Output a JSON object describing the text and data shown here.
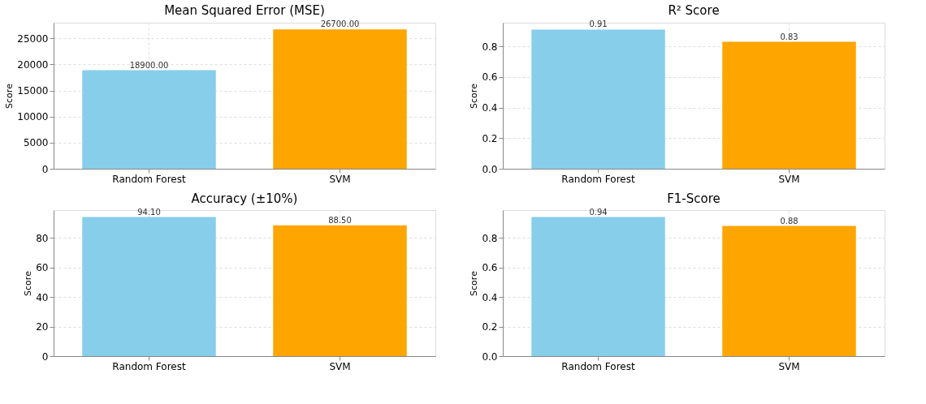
{
  "chart_data": [
    {
      "type": "bar",
      "title": "Mean Squared Error (MSE)",
      "ylabel": "Score",
      "categories": [
        "Random Forest",
        "SVM"
      ],
      "values": [
        18900,
        26700
      ],
      "colors": [
        "#87ceeb",
        "#ffa500"
      ],
      "value_labels": [
        "18900.00",
        "26700.00"
      ],
      "ylim": [
        0,
        28000
      ],
      "yticks": [
        0,
        5000,
        10000,
        15000,
        20000,
        25000
      ],
      "grid": true
    },
    {
      "type": "bar",
      "title": "R² Score",
      "ylabel": "Score",
      "categories": [
        "Random Forest",
        "SVM"
      ],
      "values": [
        0.91,
        0.83
      ],
      "colors": [
        "#87ceeb",
        "#ffa500"
      ],
      "data_labels": true,
      "ylim": [
        0,
        0.955
      ],
      "yticks": [
        {
          "value": 0,
          "label": "0.0"
        },
        0.2,
        0.4,
        0.6,
        0.8
      ],
      "grid": true
    },
    {
      "type": "bar",
      "title": "Accuracy (±10%)",
      "ylabel": "Score",
      "categories": [
        "Random Forest",
        "SVM"
      ],
      "values": [
        94.1,
        88.5
      ],
      "colors": [
        "#87ceeb",
        "#ffa500"
      ],
      "value_labels": [
        "94.10",
        "88.50"
      ],
      "ylim": [
        0,
        98.8
      ],
      "yticks": [
        0,
        20,
        40,
        60,
        80
      ],
      "grid": true
    },
    {
      "type": "bar",
      "title": "F1-Score",
      "ylabel": "Score",
      "categories": [
        "Random Forest",
        "SVM"
      ],
      "values": [
        0.94,
        0.88
      ],
      "colors": [
        "#87ceeb",
        "#ffa500"
      ],
      "data_labels": true,
      "ylim": [
        0,
        0.987
      ],
      "yticks": [
        {
          "value": 0,
          "label": "0.0"
        },
        0.2,
        0.4,
        0.6,
        0.8
      ],
      "grid": true
    }
  ]
}
